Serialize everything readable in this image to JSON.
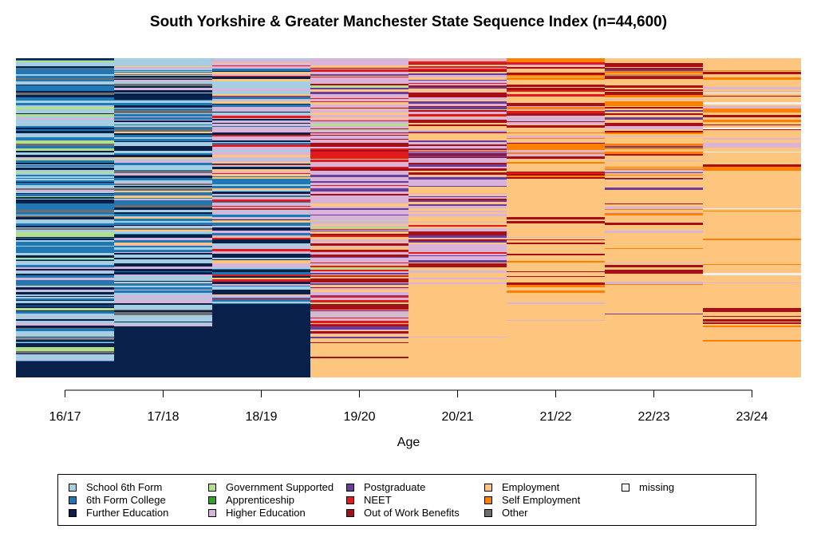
{
  "chart_data": {
    "type": "sequence index plot",
    "title": "South Yorkshire & Greater Manchester State Sequence Index (n=44,600)",
    "xlabel": "Age",
    "ylabel": "",
    "periods": [
      "16/17",
      "17/18",
      "18/19",
      "19/20",
      "20/21",
      "21/22",
      "22/23",
      "23/24"
    ],
    "states": [
      {
        "name": "School 6th Form",
        "color": "#a6cee3"
      },
      {
        "name": "6th Form College",
        "color": "#1f78b4"
      },
      {
        "name": "Further Education",
        "color": "#08204a"
      },
      {
        "name": "Government Supported",
        "color": "#b2df8a"
      },
      {
        "name": "Apprenticeship",
        "color": "#33a02c"
      },
      {
        "name": "Higher Education",
        "color": "#d9b3d8"
      },
      {
        "name": "Postgraduate",
        "color": "#6a3d9a"
      },
      {
        "name": "NEET",
        "color": "#e31a1c"
      },
      {
        "name": "Out of Work Benefits",
        "color": "#a50f15"
      },
      {
        "name": "Employment",
        "color": "#fdc57d"
      },
      {
        "name": "Self Employment",
        "color": "#ff7f00"
      },
      {
        "name": "Other",
        "color": "#6e6e6e"
      },
      {
        "name": "missing",
        "color": "#f2f2f2"
      }
    ],
    "legend_position": "bottom",
    "grid": false
  }
}
